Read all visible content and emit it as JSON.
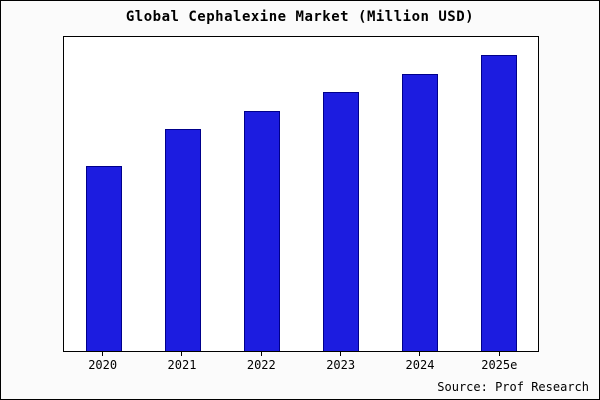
{
  "chart_data": {
    "type": "bar",
    "title": "Global Cephalexine Market (Million USD)",
    "categories": [
      "2020",
      "2021",
      "2022",
      "2023",
      "2024",
      "2025e"
    ],
    "values": [
      100,
      120,
      130,
      140,
      150,
      160
    ],
    "xlabel": "",
    "ylabel": "",
    "ylim": [
      0,
      170
    ],
    "grid": false,
    "legend": false,
    "bar_color": "#1c1ce0",
    "bar_edge_color": "#00008b",
    "source": "Source: Prof Research"
  }
}
